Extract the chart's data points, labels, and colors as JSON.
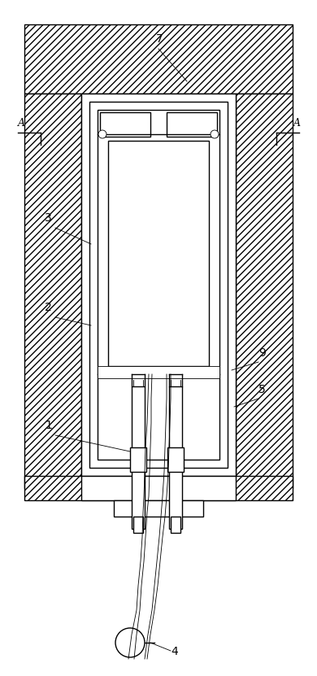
{
  "bg_color": "#ffffff",
  "line_color": "#000000",
  "lw": 1.0,
  "tlw": 0.6,
  "fig_width": 3.9,
  "fig_height": 8.31
}
